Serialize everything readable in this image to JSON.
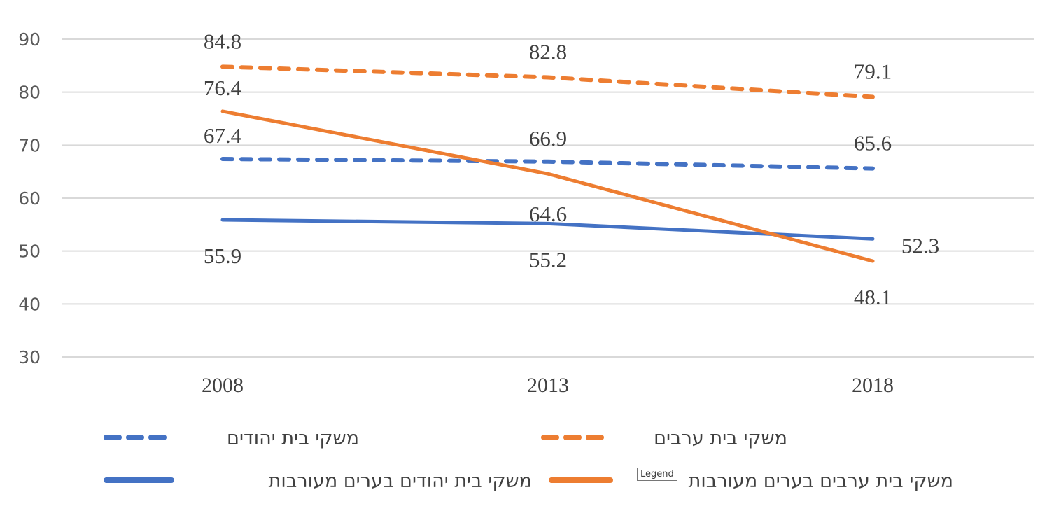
{
  "chart_data": {
    "type": "line",
    "categories": [
      "2008",
      "2013",
      "2018"
    ],
    "ylim": [
      30,
      90
    ],
    "yticks": [
      30,
      40,
      50,
      60,
      70,
      80,
      90
    ],
    "grid": true,
    "legend_placement": "bottom",
    "series": [
      {
        "name": "משקי בית יהודים",
        "values": [
          67.4,
          66.9,
          65.6
        ],
        "color": "#4472C4",
        "style": "dashed"
      },
      {
        "name": "משקי בית ערבים",
        "values": [
          84.8,
          82.8,
          79.1
        ],
        "color": "#ED7D31",
        "style": "dashed"
      },
      {
        "name": "משקי בית יהודים בערים מעורבות",
        "values": [
          55.9,
          55.2,
          52.3
        ],
        "color": "#4472C4",
        "style": "solid"
      },
      {
        "name": "משקי בית ערבים בערים מעורבות",
        "values": [
          76.4,
          64.6,
          48.1
        ],
        "color": "#ED7D31",
        "style": "solid"
      }
    ]
  },
  "tooltip": "Legend"
}
